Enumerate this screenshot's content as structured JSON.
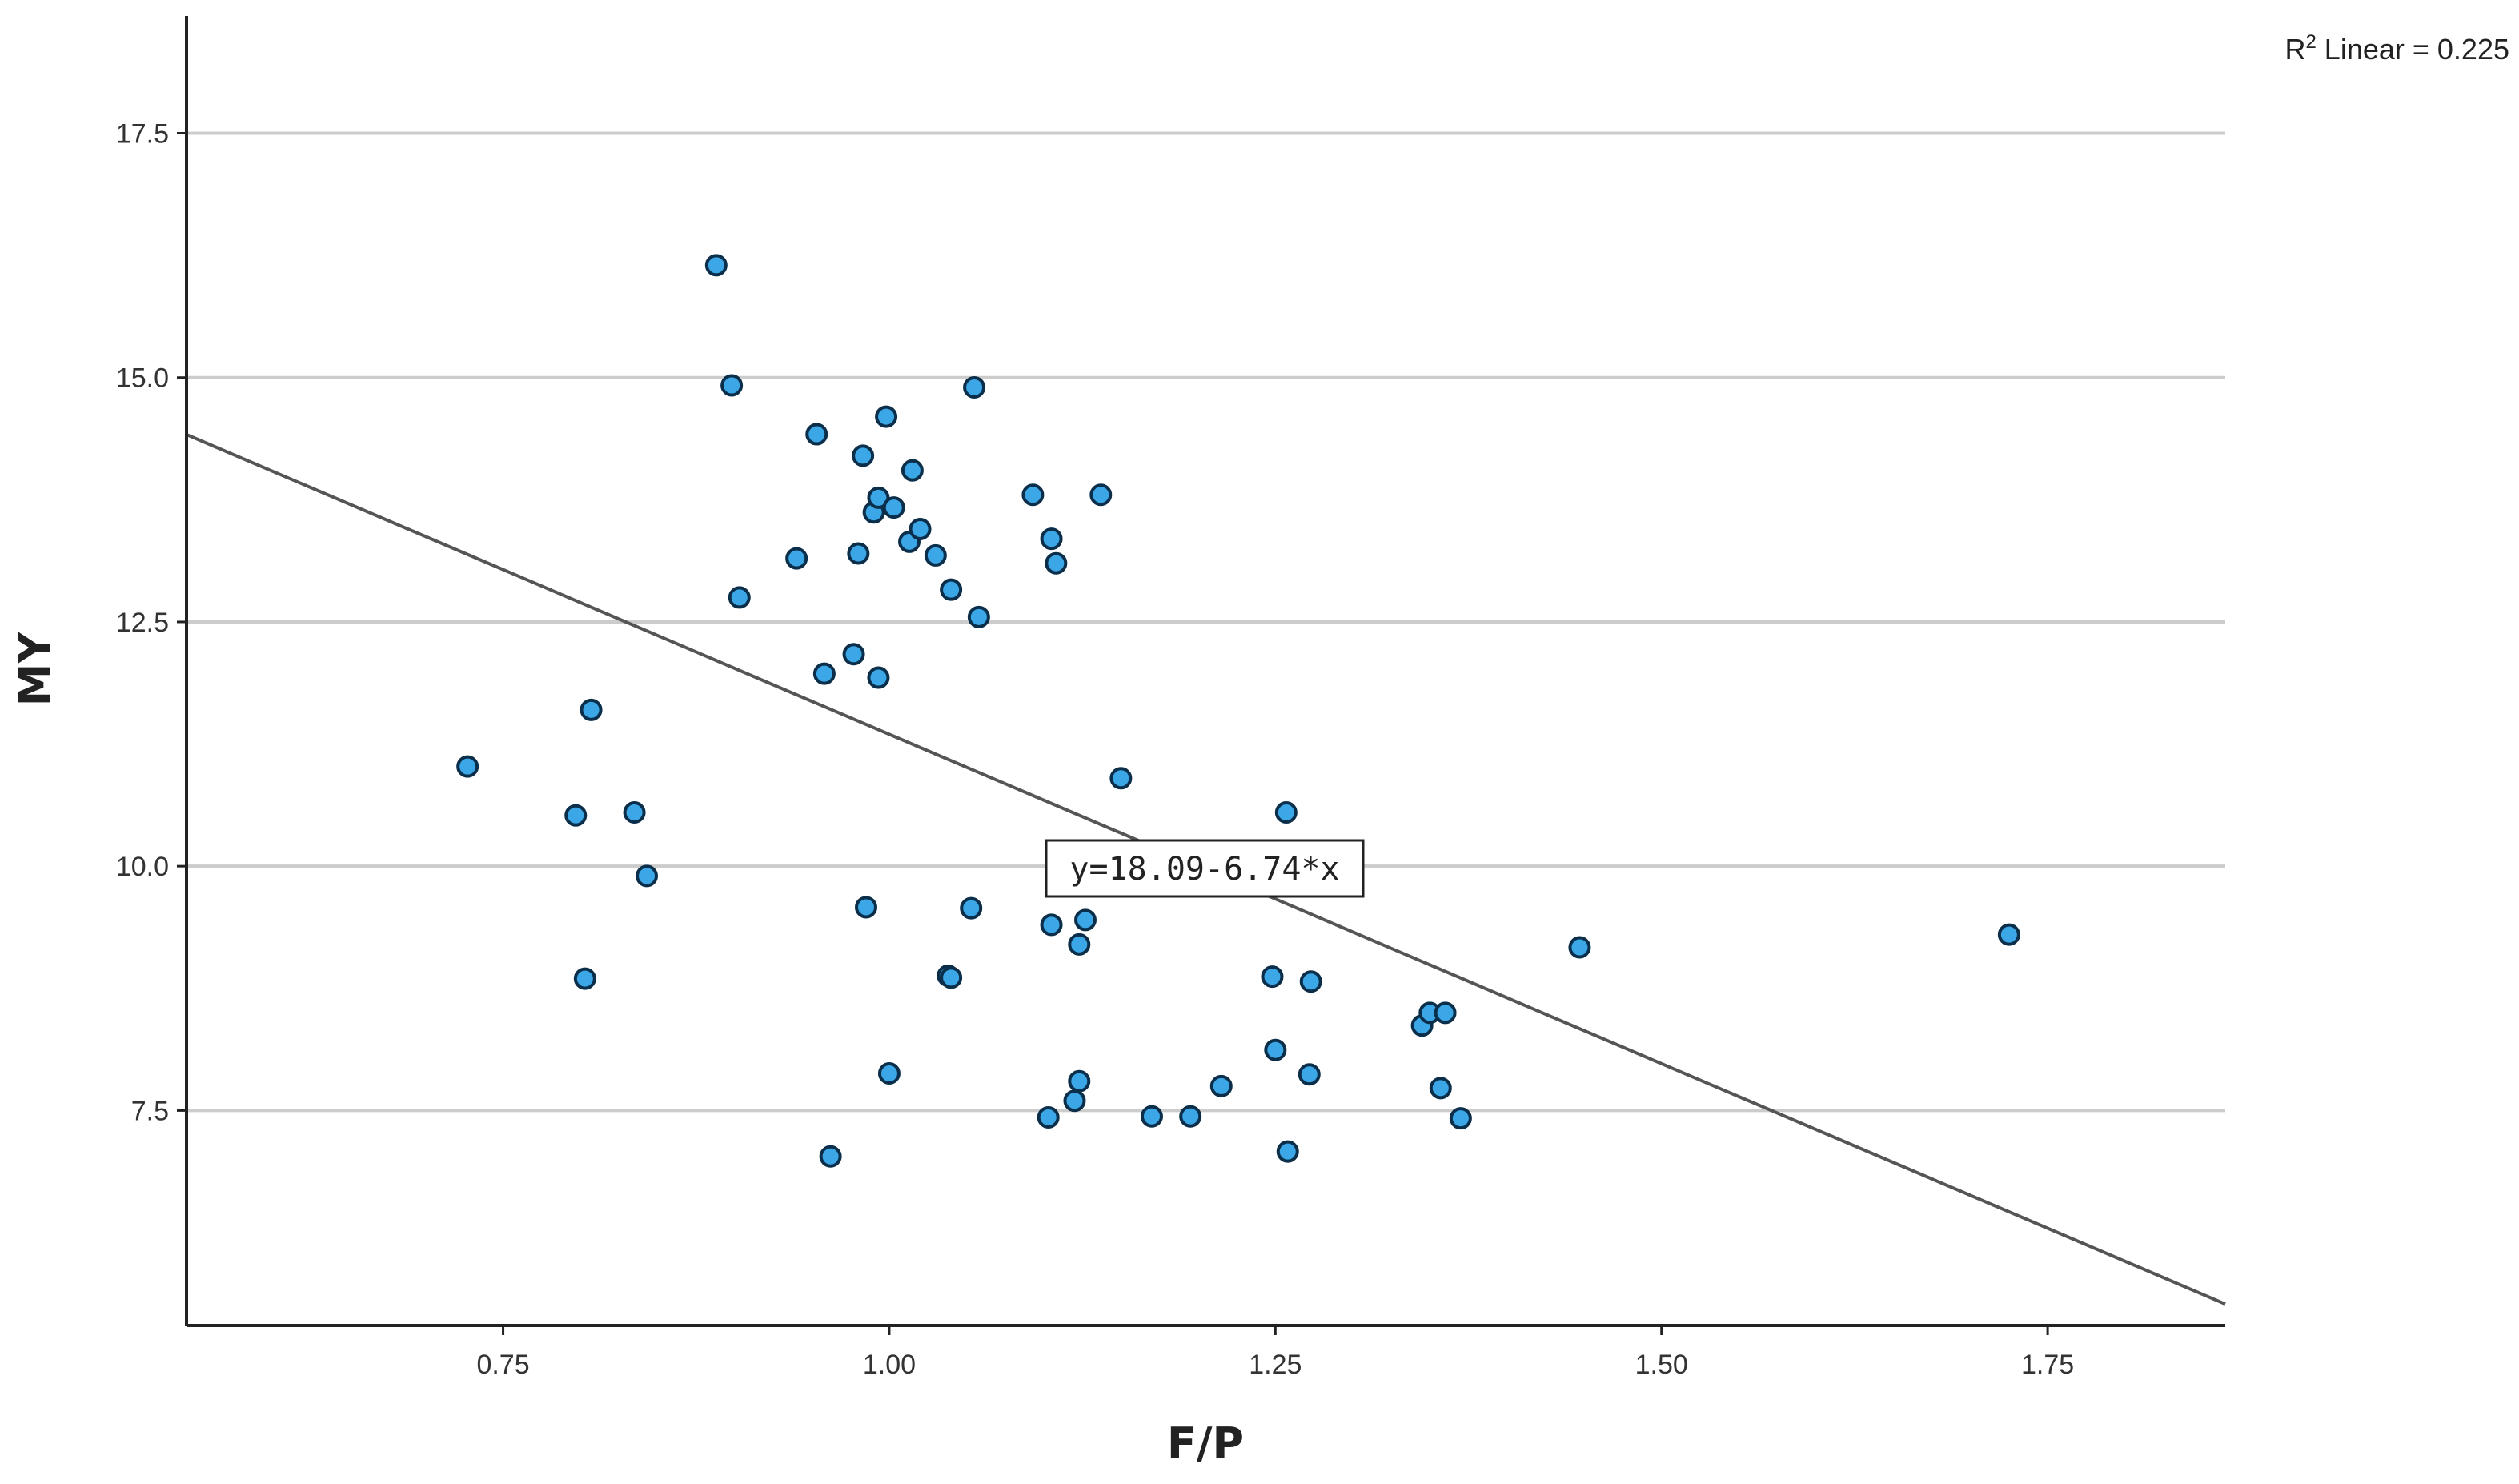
{
  "chart_data": {
    "type": "scatter",
    "title": "",
    "xlabel": "F/P",
    "ylabel": "MY",
    "xlim": [
      0.545,
      1.865
    ],
    "ylim": [
      5.3,
      18.7
    ],
    "x_ticks": [
      "0.75",
      "1.00",
      "1.25",
      "1.50",
      "1.75"
    ],
    "x_tick_values": [
      0.75,
      1.0,
      1.25,
      1.5,
      1.75
    ],
    "y_ticks": [
      "7.5",
      "10.0",
      "12.5",
      "15.0",
      "17.5"
    ],
    "y_tick_values": [
      7.5,
      10.0,
      12.5,
      15.0,
      17.5
    ],
    "grid": "horizontal",
    "colors": {
      "point_fill": "#3ba7e6",
      "point_stroke": "#0b2f4a",
      "line": "#555555",
      "grid": "#cccccc"
    },
    "fit_line": {
      "intercept": 18.09,
      "slope": -6.74,
      "equation": "y=18.09-6.74*x"
    },
    "r2": {
      "prefix": "R",
      "sup": "2",
      "text": " Linear = 0.225"
    },
    "points": [
      [
        0.727,
        11.02
      ],
      [
        0.797,
        10.52
      ],
      [
        0.807,
        11.6
      ],
      [
        0.803,
        8.85
      ],
      [
        0.835,
        10.55
      ],
      [
        0.843,
        9.9
      ],
      [
        0.888,
        16.15
      ],
      [
        0.898,
        14.92
      ],
      [
        0.903,
        12.75
      ],
      [
        0.94,
        13.15
      ],
      [
        0.953,
        14.42
      ],
      [
        0.958,
        11.97
      ],
      [
        0.962,
        7.03
      ],
      [
        0.977,
        12.17
      ],
      [
        0.98,
        13.2
      ],
      [
        0.983,
        14.2
      ],
      [
        0.985,
        9.58
      ],
      [
        0.99,
        13.62
      ],
      [
        0.993,
        13.77
      ],
      [
        0.993,
        11.93
      ],
      [
        0.998,
        14.6
      ],
      [
        1.0,
        7.88
      ],
      [
        1.003,
        13.67
      ],
      [
        1.013,
        13.32
      ],
      [
        1.015,
        14.05
      ],
      [
        1.02,
        13.45
      ],
      [
        1.03,
        13.18
      ],
      [
        1.038,
        8.88
      ],
      [
        1.04,
        8.86
      ],
      [
        1.04,
        12.83
      ],
      [
        1.053,
        9.57
      ],
      [
        1.055,
        14.9
      ],
      [
        1.058,
        12.55
      ],
      [
        1.093,
        13.8
      ],
      [
        1.103,
        7.43
      ],
      [
        1.105,
        9.4
      ],
      [
        1.105,
        13.35
      ],
      [
        1.108,
        13.1
      ],
      [
        1.12,
        7.6
      ],
      [
        1.123,
        7.8
      ],
      [
        1.123,
        9.2
      ],
      [
        1.127,
        9.45
      ],
      [
        1.137,
        13.8
      ],
      [
        1.15,
        10.9
      ],
      [
        1.17,
        7.44
      ],
      [
        1.195,
        7.44
      ],
      [
        1.215,
        7.75
      ],
      [
        1.248,
        8.87
      ],
      [
        1.25,
        8.12
      ],
      [
        1.257,
        10.55
      ],
      [
        1.258,
        7.08
      ],
      [
        1.272,
        7.87
      ],
      [
        1.273,
        8.82
      ],
      [
        1.345,
        8.37
      ],
      [
        1.35,
        8.5
      ],
      [
        1.357,
        7.73
      ],
      [
        1.36,
        8.5
      ],
      [
        1.37,
        7.42
      ],
      [
        1.447,
        9.17
      ],
      [
        1.725,
        9.3
      ]
    ]
  }
}
